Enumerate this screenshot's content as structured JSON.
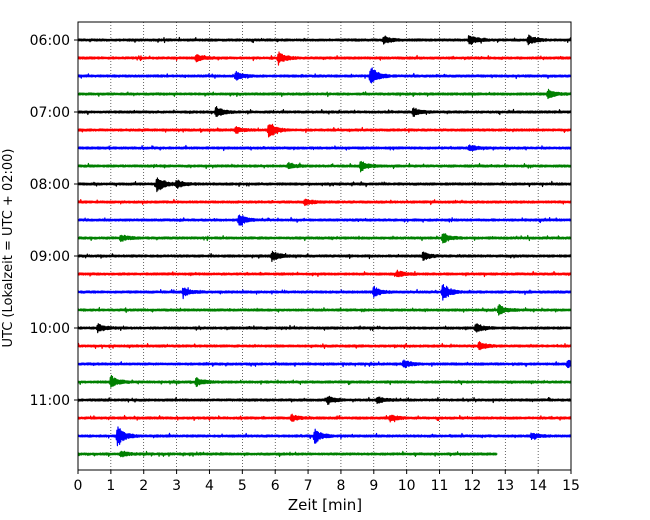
{
  "chart_data": {
    "type": "line",
    "xlabel": "Zeit  [min]",
    "ylabel": "UTC (Lokalzeit = UTC + 02:00)",
    "xlim": [
      0,
      15
    ],
    "x_ticks": [
      0,
      1,
      2,
      3,
      4,
      5,
      6,
      7,
      8,
      9,
      10,
      11,
      12,
      13,
      14,
      15
    ],
    "x_grid": "dotted vertical lines at each minute",
    "y_ticks": [
      "06:00",
      "07:00",
      "08:00",
      "09:00",
      "10:00",
      "11:00"
    ],
    "traces_per_hour": 4,
    "trace_interval_min": 15,
    "color_cycle": [
      "#000000",
      "#ff0000",
      "#0000ff",
      "#008000"
    ],
    "traces": [
      {
        "start": "06:00",
        "color": "#000000",
        "end_min": 15,
        "events": [
          {
            "t": 9.3,
            "amp": 4
          },
          {
            "t": 11.9,
            "amp": 5
          },
          {
            "t": 13.7,
            "amp": 5
          }
        ]
      },
      {
        "start": "06:15",
        "color": "#ff0000",
        "end_min": 15,
        "events": [
          {
            "t": 6.1,
            "amp": 6
          },
          {
            "t": 3.6,
            "amp": 3
          }
        ]
      },
      {
        "start": "06:30",
        "color": "#0000ff",
        "end_min": 15,
        "events": [
          {
            "t": 4.8,
            "amp": 4
          },
          {
            "t": 8.9,
            "amp": 10
          }
        ]
      },
      {
        "start": "06:45",
        "color": "#008000",
        "end_min": 15,
        "events": [
          {
            "t": 14.3,
            "amp": 4
          }
        ]
      },
      {
        "start": "07:00",
        "color": "#000000",
        "end_min": 15,
        "events": [
          {
            "t": 4.2,
            "amp": 5
          },
          {
            "t": 10.2,
            "amp": 4
          }
        ]
      },
      {
        "start": "07:15",
        "color": "#ff0000",
        "end_min": 15,
        "events": [
          {
            "t": 5.8,
            "amp": 9
          },
          {
            "t": 4.8,
            "amp": 3
          }
        ]
      },
      {
        "start": "07:30",
        "color": "#0000ff",
        "end_min": 15,
        "events": [
          {
            "t": 11.9,
            "amp": 3
          }
        ]
      },
      {
        "start": "07:45",
        "color": "#008000",
        "end_min": 15,
        "events": [
          {
            "t": 8.6,
            "amp": 5
          },
          {
            "t": 6.4,
            "amp": 3
          }
        ]
      },
      {
        "start": "08:00",
        "color": "#000000",
        "end_min": 15,
        "events": [
          {
            "t": 2.4,
            "amp": 8
          },
          {
            "t": 3.0,
            "amp": 4
          }
        ]
      },
      {
        "start": "08:15",
        "color": "#ff0000",
        "end_min": 15,
        "events": [
          {
            "t": 6.9,
            "amp": 3
          }
        ]
      },
      {
        "start": "08:30",
        "color": "#0000ff",
        "end_min": 15,
        "events": [
          {
            "t": 4.9,
            "amp": 6
          }
        ]
      },
      {
        "start": "08:45",
        "color": "#008000",
        "end_min": 15,
        "events": [
          {
            "t": 11.1,
            "amp": 5
          },
          {
            "t": 1.3,
            "amp": 3
          }
        ]
      },
      {
        "start": "09:00",
        "color": "#000000",
        "end_min": 15,
        "events": [
          {
            "t": 5.9,
            "amp": 5
          },
          {
            "t": 10.5,
            "amp": 4
          }
        ]
      },
      {
        "start": "09:15",
        "color": "#ff0000",
        "end_min": 15,
        "events": [
          {
            "t": 9.7,
            "amp": 3
          }
        ]
      },
      {
        "start": "09:30",
        "color": "#0000ff",
        "end_min": 15,
        "events": [
          {
            "t": 3.2,
            "amp": 4
          },
          {
            "t": 9.0,
            "amp": 5
          },
          {
            "t": 11.1,
            "amp": 9
          }
        ]
      },
      {
        "start": "09:45",
        "color": "#008000",
        "end_min": 15,
        "events": [
          {
            "t": 12.8,
            "amp": 5
          }
        ]
      },
      {
        "start": "10:00",
        "color": "#000000",
        "end_min": 15,
        "events": [
          {
            "t": 0.6,
            "amp": 4
          },
          {
            "t": 12.1,
            "amp": 4
          }
        ]
      },
      {
        "start": "10:15",
        "color": "#ff0000",
        "end_min": 15,
        "events": [
          {
            "t": 12.2,
            "amp": 4
          }
        ]
      },
      {
        "start": "10:30",
        "color": "#0000ff",
        "end_min": 15,
        "events": [
          {
            "t": 9.9,
            "amp": 4
          },
          {
            "t": 14.9,
            "amp": 4
          }
        ]
      },
      {
        "start": "10:45",
        "color": "#008000",
        "end_min": 15,
        "events": [
          {
            "t": 1.0,
            "amp": 6
          },
          {
            "t": 3.6,
            "amp": 4
          }
        ]
      },
      {
        "start": "11:00",
        "color": "#000000",
        "end_min": 15,
        "events": [
          {
            "t": 7.6,
            "amp": 4
          },
          {
            "t": 9.1,
            "amp": 3
          }
        ]
      },
      {
        "start": "11:15",
        "color": "#ff0000",
        "end_min": 15,
        "events": [
          {
            "t": 9.5,
            "amp": 3
          },
          {
            "t": 6.5,
            "amp": 3
          }
        ]
      },
      {
        "start": "11:30",
        "color": "#0000ff",
        "end_min": 15,
        "events": [
          {
            "t": 1.2,
            "amp": 11
          },
          {
            "t": 7.2,
            "amp": 7
          },
          {
            "t": 13.8,
            "amp": 3
          }
        ]
      },
      {
        "start": "11:45",
        "color": "#008000",
        "end_min": 12.75,
        "events": [
          {
            "t": 1.3,
            "amp": 3
          }
        ]
      }
    ]
  }
}
